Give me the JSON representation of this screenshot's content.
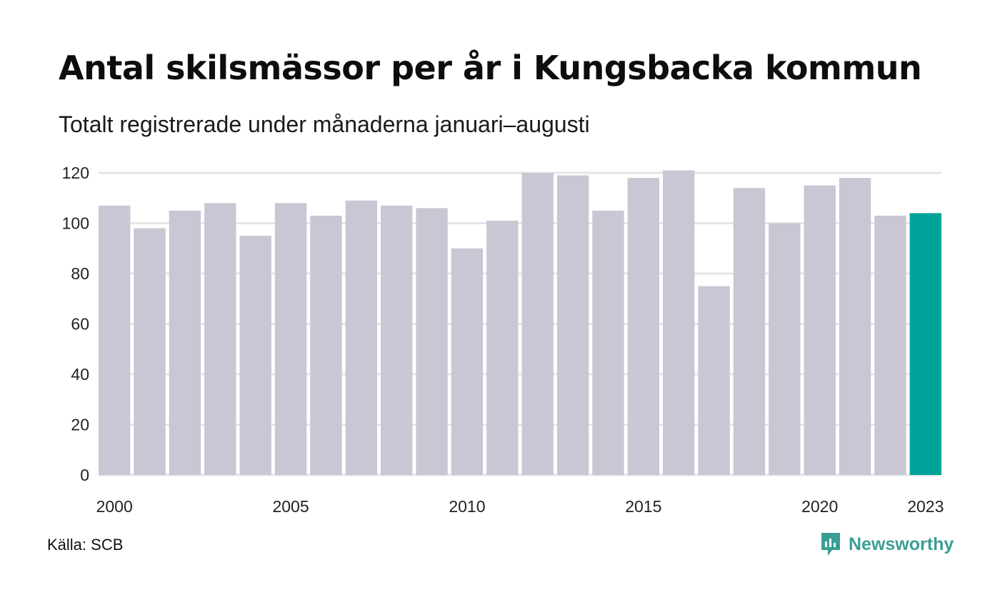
{
  "header": {
    "title": "Antal skilsmässor per år i Kungsbacka kommun",
    "subtitle": "Totalt registrerade under månaderna januari–augusti"
  },
  "footer": {
    "source": "Källa: SCB",
    "brand": "Newsworthy",
    "brand_icon": "newsworthy-logo-icon"
  },
  "colors": {
    "bar": "#c8c7d3",
    "highlight": "#00a39a",
    "grid": "#e6e6e6",
    "brand": "#3a9e95"
  },
  "chart_data": {
    "type": "bar",
    "categories": [
      "2000",
      "2001",
      "2002",
      "2003",
      "2004",
      "2005",
      "2006",
      "2007",
      "2008",
      "2009",
      "2010",
      "2011",
      "2012",
      "2013",
      "2014",
      "2015",
      "2016",
      "2017",
      "2018",
      "2019",
      "2020",
      "2021",
      "2022",
      "2023"
    ],
    "values": [
      107,
      98,
      105,
      108,
      95,
      108,
      103,
      109,
      107,
      106,
      90,
      101,
      120,
      119,
      105,
      118,
      121,
      75,
      114,
      100,
      115,
      118,
      103,
      104
    ],
    "highlight_category": "2023",
    "x_tick_labels": [
      "2000",
      "2005",
      "2010",
      "2015",
      "2020",
      "2023"
    ],
    "y_ticks": [
      0,
      20,
      40,
      60,
      80,
      100,
      120
    ],
    "ylim": [
      0,
      120
    ],
    "grid": true,
    "legend": "none",
    "title": "Antal skilsmässor per år i Kungsbacka kommun",
    "subtitle": "Totalt registrerade under månaderna januari–augusti",
    "xlabel": "",
    "ylabel": ""
  }
}
